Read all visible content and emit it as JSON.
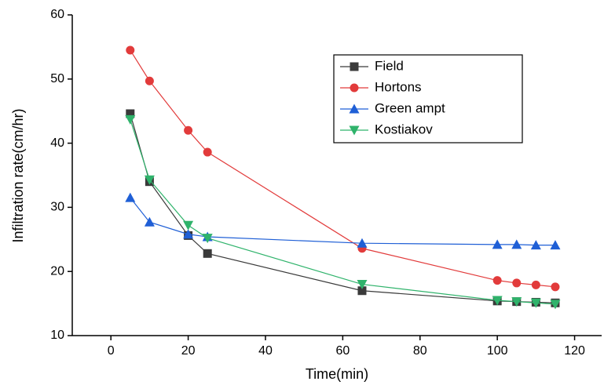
{
  "chart_data": {
    "type": "line",
    "xlabel": "Time(min)",
    "ylabel": "Infiltration rate(cm/hr)",
    "x": [
      5,
      10,
      20,
      25,
      65,
      100,
      105,
      110,
      115
    ],
    "series": [
      {
        "name": "Field",
        "color": "#3a3a3a",
        "marker": "square",
        "values": [
          44.6,
          34,
          25.6,
          22.8,
          17,
          15.4,
          15.3,
          15.2,
          15.1
        ]
      },
      {
        "name": "Hortons",
        "color": "#e23b3b",
        "marker": "circle",
        "values": [
          54.5,
          49.7,
          42,
          38.6,
          23.6,
          18.6,
          18.2,
          17.9,
          17.6
        ]
      },
      {
        "name": "Green ampt",
        "color": "#1f5fd6",
        "marker": "triangle-up",
        "values": [
          31.5,
          27.7,
          25.8,
          25.4,
          24.4,
          24.2,
          24.2,
          24.1,
          24.1
        ]
      },
      {
        "name": "Kostiakov",
        "color": "#2fb36b",
        "marker": "triangle-down",
        "values": [
          43.7,
          34.3,
          27.2,
          25.2,
          18,
          15.5,
          15.3,
          15.1,
          14.9
        ]
      }
    ],
    "xlim": [
      -10,
      127
    ],
    "ylim": [
      10,
      60
    ],
    "xticks": [
      0,
      20,
      40,
      60,
      80,
      100,
      120
    ],
    "yticks": [
      10,
      20,
      30,
      40,
      50,
      60
    ],
    "grid": false
  }
}
